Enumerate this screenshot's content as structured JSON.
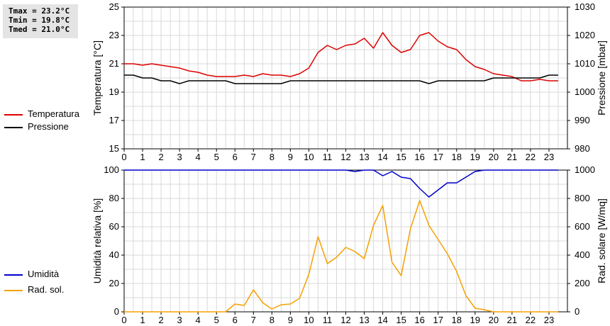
{
  "stats": {
    "tmax": "Tmax = 23.2°C",
    "tmin": "Tmin = 19.8°C",
    "tmed": "Tmed = 21.0°C"
  },
  "colors": {
    "temperature": "#dd0000",
    "pressure": "#000000",
    "humidity": "#0000cc",
    "radiation": "#f5a000",
    "grid": "#d8d8d8"
  },
  "chart_data": [
    {
      "type": "line",
      "ylabel": "Temperatura [°C]",
      "y2label": "Pressione [mbar]",
      "ylim": [
        15,
        25
      ],
      "y2lim": [
        980,
        1030
      ],
      "xlim": [
        0,
        24
      ],
      "grid": true,
      "legend_placement": "left",
      "yticks": [
        "15",
        "17",
        "19",
        "21",
        "23",
        "25"
      ],
      "y2ticks": [
        "980",
        "990",
        "1000",
        "1010",
        "1020",
        "1030"
      ],
      "xticks": [
        "0",
        "1",
        "2",
        "3",
        "4",
        "5",
        "6",
        "7",
        "8",
        "9",
        "10",
        "11",
        "12",
        "13",
        "14",
        "15",
        "16",
        "17",
        "18",
        "19",
        "20",
        "21",
        "22",
        "23"
      ],
      "series": [
        {
          "name": "Temperatura",
          "axis": "left",
          "color": "#dd0000",
          "x": [
            0,
            0.5,
            1,
            1.5,
            2,
            2.5,
            3,
            3.5,
            4,
            4.5,
            5,
            5.5,
            6,
            6.5,
            7,
            7.5,
            8,
            8.5,
            9,
            9.5,
            10,
            10.5,
            11,
            11.5,
            12,
            12.5,
            13,
            13.5,
            14,
            14.5,
            15,
            15.5,
            16,
            16.5,
            17,
            17.5,
            18,
            18.5,
            19,
            19.5,
            20,
            20.5,
            21,
            21.5,
            22,
            22.5,
            23,
            23.5
          ],
          "values": [
            21.0,
            21.0,
            20.9,
            21.0,
            20.9,
            20.8,
            20.7,
            20.5,
            20.4,
            20.2,
            20.1,
            20.1,
            20.1,
            20.2,
            20.1,
            20.3,
            20.2,
            20.2,
            20.1,
            20.3,
            20.7,
            21.8,
            22.3,
            22.0,
            22.3,
            22.4,
            22.8,
            22.1,
            23.2,
            22.3,
            21.8,
            22.0,
            23.0,
            23.2,
            22.6,
            22.2,
            22.0,
            21.3,
            20.8,
            20.6,
            20.3,
            20.2,
            20.1,
            19.8,
            19.8,
            19.9,
            19.8,
            19.8
          ]
        },
        {
          "name": "Pressione",
          "axis": "right",
          "color": "#000000",
          "x": [
            0,
            0.5,
            1,
            1.5,
            2,
            2.5,
            3,
            3.5,
            4,
            4.5,
            5,
            5.5,
            6,
            6.5,
            7,
            7.5,
            8,
            8.5,
            9,
            9.5,
            10,
            10.5,
            11,
            11.5,
            12,
            12.5,
            13,
            13.5,
            14,
            14.5,
            15,
            15.5,
            16,
            16.5,
            17,
            17.5,
            18,
            18.5,
            19,
            19.5,
            20,
            20.5,
            21,
            21.5,
            22,
            22.5,
            23,
            23.5
          ],
          "values": [
            1006,
            1006,
            1005,
            1005,
            1004,
            1004,
            1003,
            1004,
            1004,
            1004,
            1004,
            1004,
            1003,
            1003,
            1003,
            1003,
            1003,
            1003,
            1004,
            1004,
            1004,
            1004,
            1004,
            1004,
            1004,
            1004,
            1004,
            1004,
            1004,
            1004,
            1004,
            1004,
            1004,
            1003,
            1004,
            1004,
            1004,
            1004,
            1004,
            1004,
            1005,
            1005,
            1005,
            1005,
            1005,
            1005,
            1006,
            1006
          ]
        }
      ]
    },
    {
      "type": "line",
      "ylabel": "Umidità relativa [%]",
      "y2label": "Rad. solare [W/mq]",
      "ylim": [
        0,
        100
      ],
      "y2lim": [
        0,
        1000
      ],
      "xlim": [
        0,
        24
      ],
      "grid": true,
      "legend_placement": "left",
      "yticks": [
        "0",
        "20",
        "40",
        "60",
        "80",
        "100"
      ],
      "y2ticks": [
        "0",
        "200",
        "400",
        "600",
        "800",
        "1000"
      ],
      "xticks": [
        "0",
        "1",
        "2",
        "3",
        "4",
        "5",
        "6",
        "7",
        "8",
        "9",
        "10",
        "11",
        "12",
        "13",
        "14",
        "15",
        "16",
        "17",
        "18",
        "19",
        "20",
        "21",
        "22",
        "23"
      ],
      "series": [
        {
          "name": "Umidità",
          "axis": "left",
          "color": "#0000cc",
          "x": [
            0,
            0.5,
            1,
            1.5,
            2,
            2.5,
            3,
            3.5,
            4,
            4.5,
            5,
            5.5,
            6,
            6.5,
            7,
            7.5,
            8,
            8.5,
            9,
            9.5,
            10,
            10.5,
            11,
            11.5,
            12,
            12.5,
            13,
            13.5,
            14,
            14.5,
            15,
            15.5,
            16,
            16.5,
            17,
            17.5,
            18,
            18.5,
            19,
            19.5,
            20,
            20.5,
            21,
            21.5,
            22,
            22.5,
            23,
            23.5
          ],
          "values": [
            100,
            100,
            100,
            100,
            100,
            100,
            100,
            100,
            100,
            100,
            100,
            100,
            100,
            100,
            100,
            100,
            100,
            100,
            100,
            100,
            100,
            100,
            100,
            100,
            100,
            99,
            100,
            100,
            96,
            99,
            95,
            94,
            87,
            81,
            86,
            91,
            91,
            95,
            99,
            100,
            100,
            100,
            100,
            100,
            100,
            100,
            100,
            100
          ]
        },
        {
          "name": "Rad. sol.",
          "axis": "right",
          "color": "#f5a000",
          "x": [
            0,
            0.5,
            1,
            1.5,
            2,
            2.5,
            3,
            3.5,
            4,
            4.5,
            5,
            5.5,
            6,
            6.5,
            7,
            7.5,
            8,
            8.5,
            9,
            9.5,
            10,
            10.5,
            11,
            11.5,
            12,
            12.5,
            13,
            13.5,
            14,
            14.5,
            15,
            15.5,
            16,
            16.5,
            17,
            17.5,
            18,
            18.5,
            19,
            19.5,
            20,
            20.5,
            21,
            21.5,
            22,
            22.5,
            23,
            23.5
          ],
          "values": [
            0,
            0,
            0,
            0,
            0,
            0,
            0,
            0,
            0,
            0,
            0,
            0,
            55,
            45,
            155,
            65,
            20,
            50,
            55,
            95,
            265,
            530,
            340,
            385,
            455,
            425,
            375,
            610,
            750,
            350,
            255,
            585,
            785,
            610,
            510,
            410,
            285,
            115,
            25,
            15,
            0,
            0,
            0,
            0,
            0,
            0,
            0,
            0
          ]
        }
      ]
    }
  ]
}
